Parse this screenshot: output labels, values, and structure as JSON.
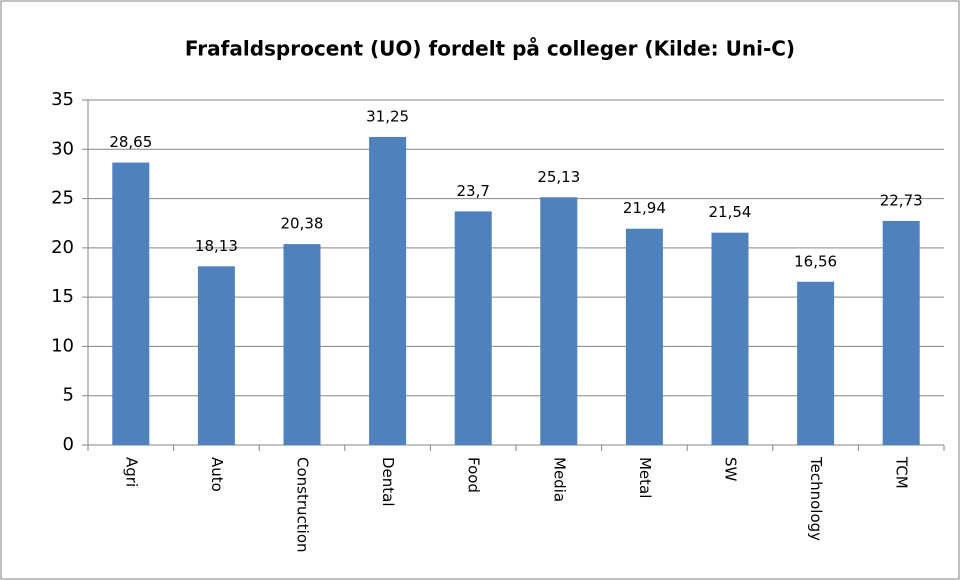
{
  "chart_data": {
    "type": "bar",
    "title": "Frafaldsprocent (UO) fordelt på colleger (Kilde: Uni-C)",
    "categories": [
      "Agri",
      "Auto",
      "Construction",
      "Dental",
      "Food",
      "Media",
      "Metal",
      "SW",
      "Technology",
      "TCM"
    ],
    "values": [
      28.65,
      18.13,
      20.38,
      31.25,
      23.7,
      25.13,
      21.94,
      21.54,
      16.56,
      22.73
    ],
    "value_labels": [
      "28,65",
      "18,13",
      "20,38",
      "31,25",
      "23,7",
      "25,13",
      "21,94",
      "21,54",
      "16,56",
      "22,73"
    ],
    "color": "#4f81bd",
    "ylim": [
      0,
      35
    ],
    "yticks": [
      0,
      5,
      10,
      15,
      20,
      25,
      30,
      35
    ],
    "grid": true
  }
}
